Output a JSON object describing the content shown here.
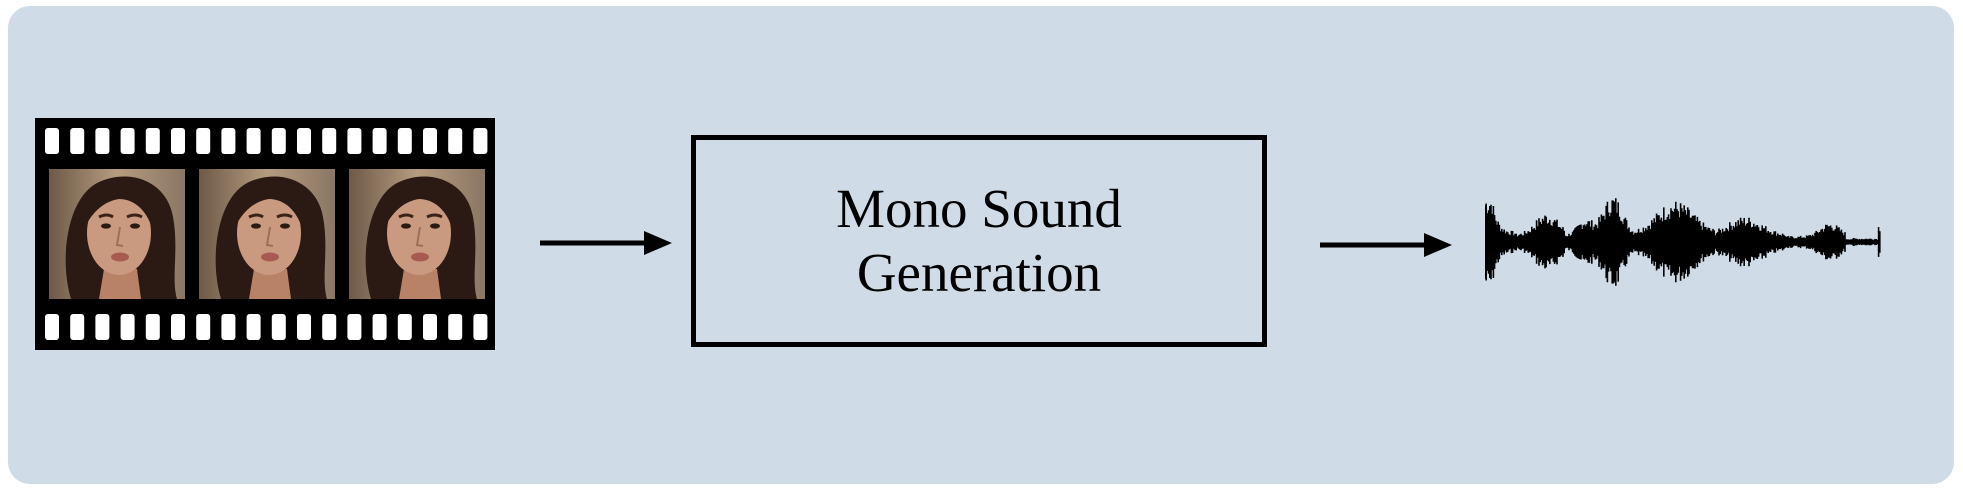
{
  "diagram": {
    "input": {
      "label": "",
      "frame_count": 3,
      "icon": "film-strip-icon"
    },
    "process": {
      "line1": "Mono Sound",
      "line2": "Generation"
    },
    "output": {
      "icon": "audio-waveform-icon"
    }
  },
  "colors": {
    "background": "#cfdbe7",
    "stroke": "#000000",
    "skin": "#c99a80",
    "hair": "#2a1a13"
  }
}
